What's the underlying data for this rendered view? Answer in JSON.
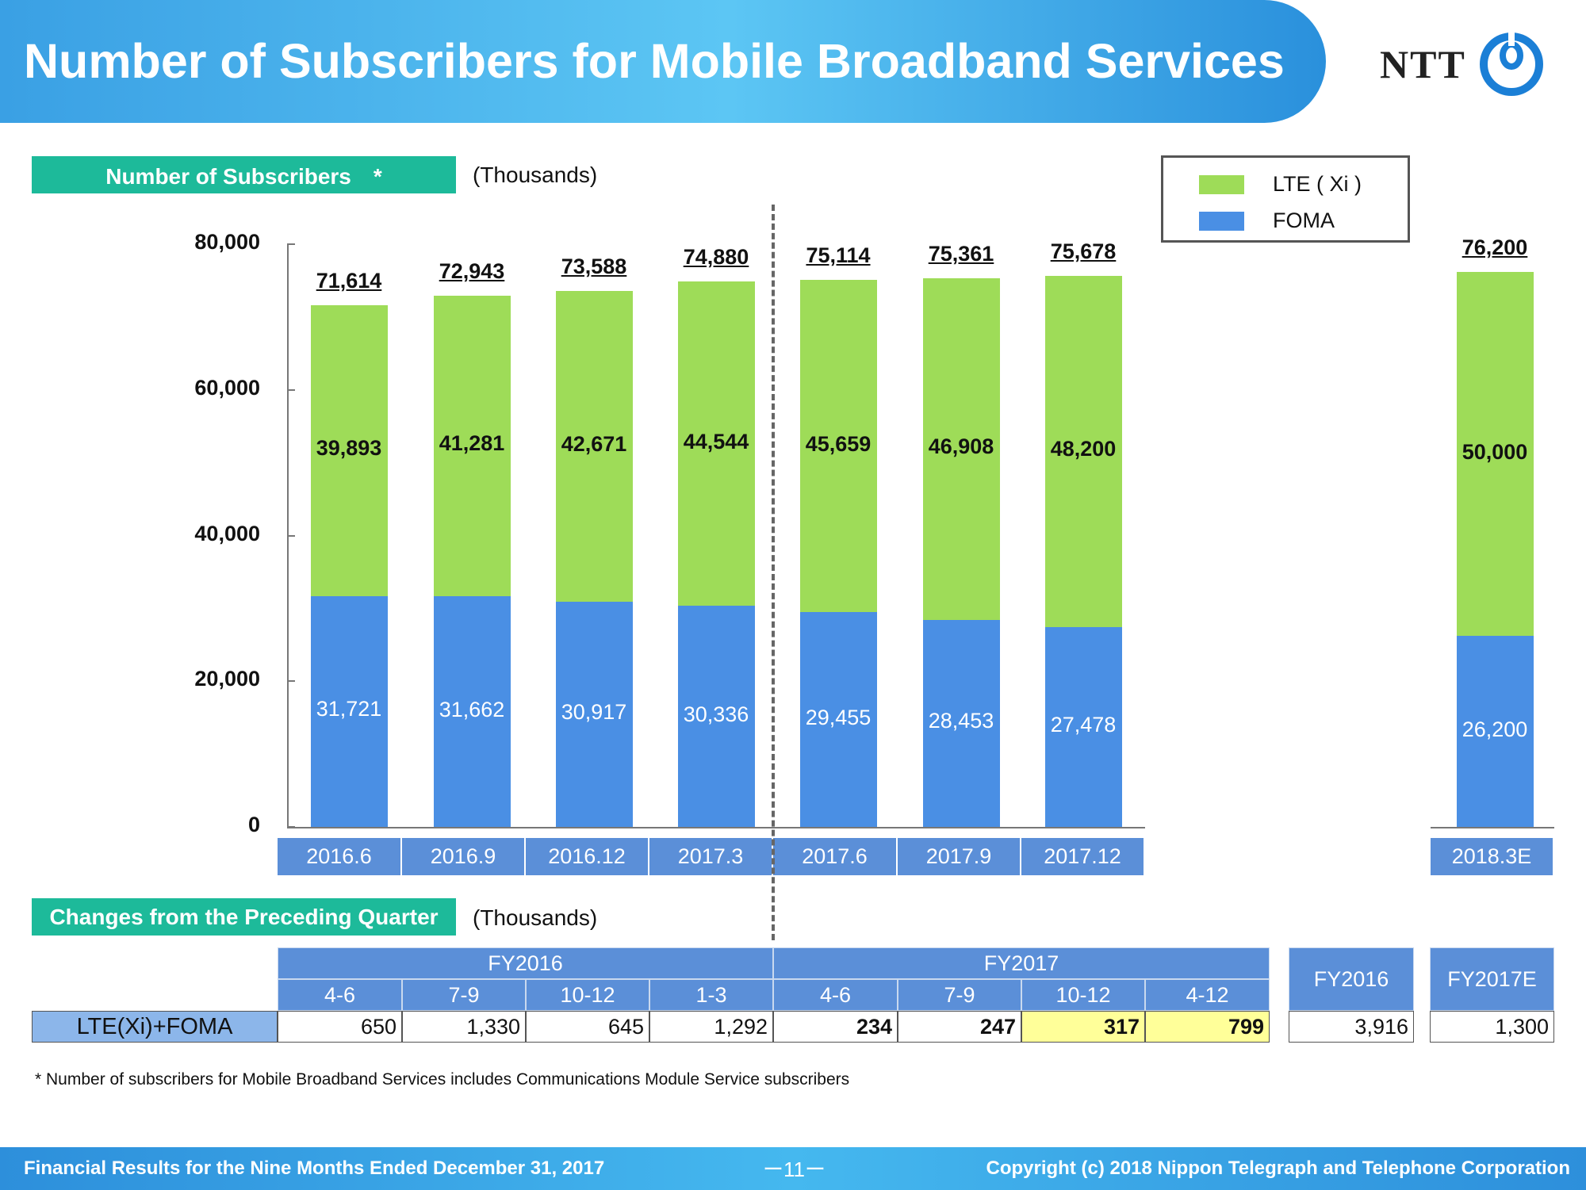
{
  "header": {
    "title": "Number of Subscribers for Mobile Broadband Services"
  },
  "logo": {
    "text": "NTT"
  },
  "chart_section": {
    "tag": "Number of Subscribers　*",
    "units": "(Thousands)"
  },
  "changes_section": {
    "tag": "Changes from the Preceding Quarter",
    "units": "(Thousands)"
  },
  "colors": {
    "lte": "#9edc58",
    "foma": "#4a8fe4",
    "accent": "#1dba9a",
    "header": "#3aa0e4"
  },
  "chart_data": {
    "type": "bar",
    "stacked": true,
    "units": "(Thousands)",
    "categories": [
      "2016.6",
      "2016.9",
      "2016.12",
      "2017.3",
      "2017.6",
      "2017.9",
      "2017.12",
      "2018.3E"
    ],
    "series": [
      {
        "name": "FOMA",
        "values": [
          31721,
          31662,
          30917,
          30336,
          29455,
          28453,
          27478,
          26200
        ],
        "labels": [
          "31,721",
          "31,662",
          "30,917",
          "30,336",
          "29,455",
          "28,453",
          "27,478",
          "26,200"
        ]
      },
      {
        "name": "LTE ( Xi )",
        "values": [
          39893,
          41281,
          42671,
          44544,
          45659,
          46908,
          48200,
          50000
        ],
        "labels": [
          "39,893",
          "41,281",
          "42,671",
          "44,544",
          "45,659",
          "46,908",
          "48,200",
          "50,000"
        ]
      }
    ],
    "totals": [
      71614,
      72943,
      73588,
      74880,
      75114,
      75361,
      75678,
      76200
    ],
    "total_labels": [
      "71,614",
      "72,943",
      "73,588",
      "74,880",
      "75,114",
      "75,361",
      "75,678",
      "76,200"
    ],
    "ylim": [
      0,
      80000
    ],
    "yticks": [
      "0",
      "20,000",
      "40,000",
      "60,000",
      "80,000"
    ],
    "legend_position": "top-right",
    "grid": false
  },
  "changes_table": {
    "row_label": "LTE(Xi)+FOMA",
    "fy_headers": [
      "FY2016",
      "FY2017"
    ],
    "quarters": [
      "4-6",
      "7-9",
      "10-12",
      "1-3",
      "4-6",
      "7-9",
      "10-12",
      "4-12"
    ],
    "values": [
      "650",
      "1,330",
      "645",
      "1,292",
      "234",
      "247",
      "317",
      "799"
    ],
    "annual": [
      {
        "label": "FY2016",
        "value": "3,916"
      },
      {
        "label": "FY2017E",
        "value": "1,300"
      }
    ]
  },
  "footnote": "* Number of subscribers for Mobile Broadband Services includes Communications Module Service subscribers",
  "footer": {
    "left": "Financial Results for the Nine Months Ended December 31, 2017",
    "page": "ー11ー",
    "right": "Copyright (c) 2018  Nippon Telegraph and Telephone Corporation"
  }
}
